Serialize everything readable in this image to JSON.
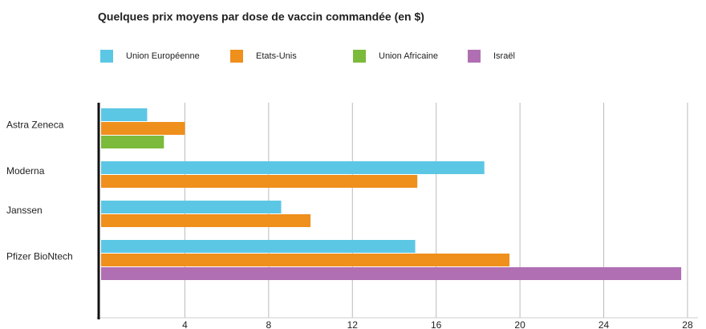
{
  "chart_data": {
    "type": "bar",
    "orientation": "horizontal",
    "title": "Quelques prix moyens par dose de vaccin commandée (en $)",
    "categories": [
      "Astra Zeneca",
      "Moderna",
      "Janssen",
      "Pfizer BioNtech"
    ],
    "series": [
      {
        "name": "Union Européenne",
        "color": "#5cc7e4",
        "values": [
          2.2,
          18.3,
          8.6,
          15.0
        ]
      },
      {
        "name": "Etats-Unis",
        "color": "#ef8f1c",
        "values": [
          4,
          15.1,
          10,
          19.5
        ]
      },
      {
        "name": "Union Africaine",
        "color": "#7cba3b",
        "values": [
          3,
          null,
          null,
          null
        ]
      },
      {
        "name": "Israël",
        "color": "#b06fb3",
        "values": [
          null,
          null,
          null,
          27.7
        ]
      }
    ],
    "xlim": [
      0,
      28.5
    ],
    "xticks": [
      4,
      8,
      12,
      16,
      20,
      24,
      28
    ],
    "grid": true,
    "legend": "top"
  }
}
